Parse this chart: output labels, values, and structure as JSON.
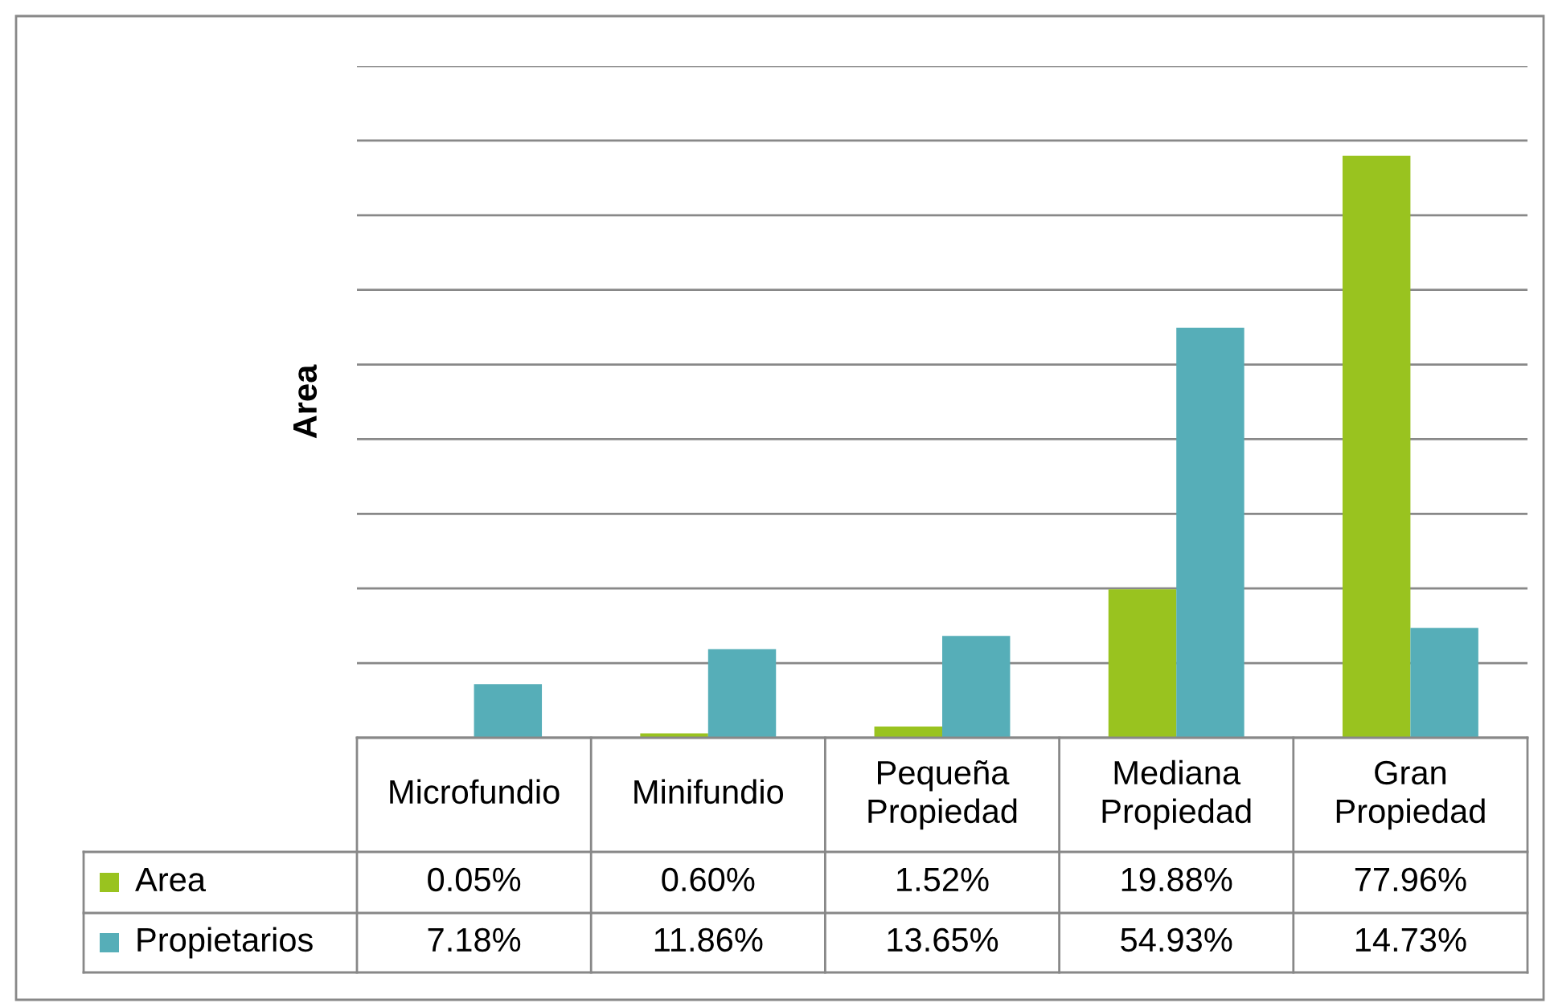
{
  "chart_data": {
    "type": "bar",
    "ylabel": "Area",
    "categories": [
      "Microfundio",
      "Minifundio",
      "Pequeña Propiedad",
      "Mediana Propiedad",
      "Gran Propiedad"
    ],
    "series": [
      {
        "name": "Area",
        "color": "#99c31f",
        "values": [
          0.05,
          0.6,
          1.52,
          19.88,
          77.96
        ],
        "value_labels": [
          "0.05%",
          "0.60%",
          "1.52%",
          "19.88%",
          "77.96%"
        ]
      },
      {
        "name": "Propietarios",
        "color": "#56aeb8",
        "values": [
          7.18,
          11.86,
          13.65,
          54.93,
          14.73
        ],
        "value_labels": [
          "7.18%",
          "11.86%",
          "13.65%",
          "54.93%",
          "14.73%"
        ]
      }
    ],
    "ylim": [
      0,
      90
    ],
    "yticks": [
      {
        "value": 0,
        "label": null
      },
      {
        "value": 10,
        "label": null
      },
      {
        "value": 20,
        "label": null
      },
      {
        "value": 30,
        "label": null
      },
      {
        "value": 40,
        "label": null
      },
      {
        "value": 50,
        "label": null
      },
      {
        "value": 60,
        "label": null
      },
      {
        "value": 70,
        "label": null
      },
      {
        "value": 80,
        "label": null
      },
      {
        "value": 90,
        "label": null
      }
    ],
    "grid": "y",
    "legend": "bottom",
    "tick_labels": false
  }
}
